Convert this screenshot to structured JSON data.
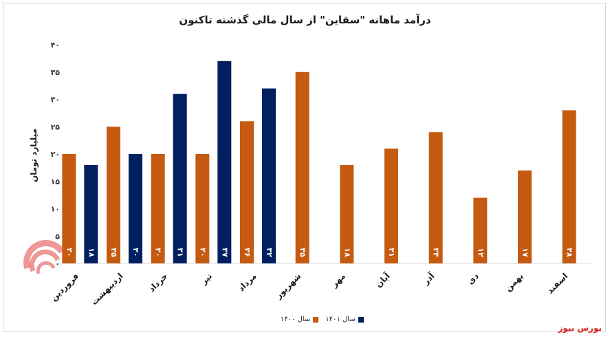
{
  "chart_data": {
    "type": "bar",
    "title": "درآمد ماهانه \"سقاین\" از سال مالی گذشته تاکنون",
    "ylabel": "میلیارد تومان",
    "xlabel": "",
    "ylim": [
      0,
      40
    ],
    "yticks": [
      "۰",
      "۵",
      "۱۰",
      "۱۵",
      "۲۰",
      "۲۵",
      "۳۰",
      "۳۵",
      "۴۰"
    ],
    "categories": [
      "فروردین",
      "اردیبهشت",
      "خرداد",
      "تیر",
      "مرداد",
      "شهریور",
      "مهر",
      "آبان",
      "آذر",
      "دی",
      "بهمن",
      "اسفند"
    ],
    "series": [
      {
        "name": "سال ۱۴۰۰",
        "color": "#c55a11",
        "values": [
          20,
          25,
          20,
          20,
          26,
          35,
          18,
          21,
          24,
          12,
          17,
          28
        ],
        "labels": [
          "۲۰",
          "۲۵",
          "۲۰",
          "۲۰",
          "۲۶",
          "۳۵",
          "۱۸",
          "۲۱",
          "۲۴",
          "۱۲",
          "۱۷",
          "۲۸"
        ]
      },
      {
        "name": "سال ۱۴۰۱",
        "color": "#002060",
        "values": [
          18,
          20,
          31,
          37,
          32,
          null,
          null,
          null,
          null,
          null,
          null,
          null
        ],
        "labels": [
          "۱۸",
          "۲۰",
          "۳۱",
          "۳۷",
          "۳۲",
          "",
          "",
          "",
          "",
          "",
          "",
          ""
        ]
      }
    ],
    "grid": false,
    "legend_position": "bottom"
  },
  "source": "بورس نیوز",
  "watermark_text": "بورس نیوز"
}
